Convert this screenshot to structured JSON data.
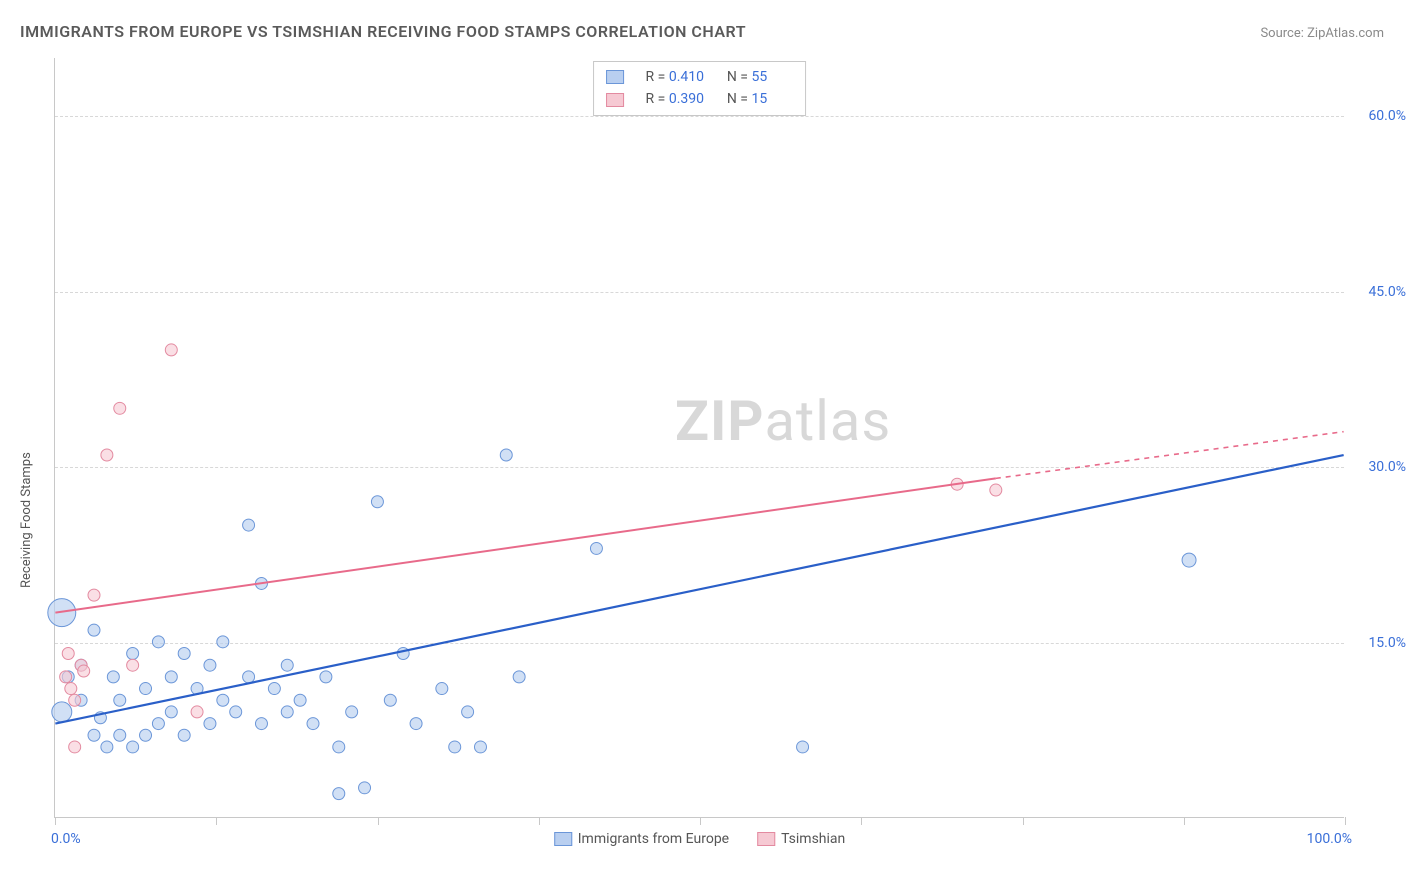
{
  "title": "IMMIGRANTS FROM EUROPE VS TSIMSHIAN RECEIVING FOOD STAMPS CORRELATION CHART",
  "source_label": "Source:",
  "source_value": "ZipAtlas.com",
  "ylabel": "Receiving Food Stamps",
  "watermark_a": "ZIP",
  "watermark_b": "atlas",
  "chart": {
    "type": "scatter",
    "background_color": "#ffffff",
    "grid_color": "#d8d8d8",
    "axis_color": "#c8c8c8",
    "xlim": [
      0,
      100
    ],
    "ylim": [
      0,
      65
    ],
    "x_tick_positions": [
      0,
      12.5,
      25,
      37.5,
      50,
      62.5,
      75,
      87.5,
      100
    ],
    "x_tick_labels": {
      "0": "0.0%",
      "100": "100.0%"
    },
    "y_gridlines": [
      15,
      30,
      45,
      60
    ],
    "y_tick_labels": {
      "15": "15.0%",
      "30": "30.0%",
      "45": "45.0%",
      "60": "60.0%"
    },
    "tick_label_color": "#3a6fd8",
    "label_color": "#555555",
    "label_fontsize": 13,
    "tick_fontsize": 14,
    "series": [
      {
        "name": "Immigrants from Europe",
        "fill": "#b9cff0",
        "stroke": "#6b96d8",
        "fill_opacity": 0.65,
        "line_color": "#2a5fc8",
        "line_width": 2.2,
        "regression": {
          "x1": 0,
          "y1": 8,
          "x2": 100,
          "y2": 31
        },
        "R": "0.410",
        "N": "55",
        "points": [
          {
            "x": 0.5,
            "y": 17.5,
            "r": 14
          },
          {
            "x": 0.5,
            "y": 9,
            "r": 10
          },
          {
            "x": 1,
            "y": 12,
            "r": 6
          },
          {
            "x": 2,
            "y": 10,
            "r": 6
          },
          {
            "x": 2,
            "y": 13,
            "r": 6
          },
          {
            "x": 3,
            "y": 7,
            "r": 6
          },
          {
            "x": 3,
            "y": 16,
            "r": 6
          },
          {
            "x": 3.5,
            "y": 8.5,
            "r": 6
          },
          {
            "x": 4,
            "y": 6,
            "r": 6
          },
          {
            "x": 4.5,
            "y": 12,
            "r": 6
          },
          {
            "x": 5,
            "y": 7,
            "r": 6
          },
          {
            "x": 5,
            "y": 10,
            "r": 6
          },
          {
            "x": 6,
            "y": 6,
            "r": 6
          },
          {
            "x": 6,
            "y": 14,
            "r": 6
          },
          {
            "x": 7,
            "y": 7,
            "r": 6
          },
          {
            "x": 7,
            "y": 11,
            "r": 6
          },
          {
            "x": 8,
            "y": 8,
            "r": 6
          },
          {
            "x": 8,
            "y": 15,
            "r": 6
          },
          {
            "x": 9,
            "y": 12,
            "r": 6
          },
          {
            "x": 9,
            "y": 9,
            "r": 6
          },
          {
            "x": 10,
            "y": 7,
            "r": 6
          },
          {
            "x": 10,
            "y": 14,
            "r": 6
          },
          {
            "x": 11,
            "y": 11,
            "r": 6
          },
          {
            "x": 12,
            "y": 8,
            "r": 6
          },
          {
            "x": 12,
            "y": 13,
            "r": 6
          },
          {
            "x": 13,
            "y": 10,
            "r": 6
          },
          {
            "x": 13,
            "y": 15,
            "r": 6
          },
          {
            "x": 14,
            "y": 9,
            "r": 6
          },
          {
            "x": 15,
            "y": 12,
            "r": 6
          },
          {
            "x": 15,
            "y": 25,
            "r": 6
          },
          {
            "x": 16,
            "y": 8,
            "r": 6
          },
          {
            "x": 16,
            "y": 20,
            "r": 6
          },
          {
            "x": 17,
            "y": 11,
            "r": 6
          },
          {
            "x": 18,
            "y": 9,
            "r": 6
          },
          {
            "x": 18,
            "y": 13,
            "r": 6
          },
          {
            "x": 19,
            "y": 10,
            "r": 6
          },
          {
            "x": 20,
            "y": 8,
            "r": 6
          },
          {
            "x": 21,
            "y": 12,
            "r": 6
          },
          {
            "x": 22,
            "y": 6,
            "r": 6
          },
          {
            "x": 22,
            "y": 2,
            "r": 6
          },
          {
            "x": 23,
            "y": 9,
            "r": 6
          },
          {
            "x": 24,
            "y": 2.5,
            "r": 6
          },
          {
            "x": 25,
            "y": 27,
            "r": 6
          },
          {
            "x": 26,
            "y": 10,
            "r": 6
          },
          {
            "x": 27,
            "y": 14,
            "r": 6
          },
          {
            "x": 28,
            "y": 8,
            "r": 6
          },
          {
            "x": 30,
            "y": 11,
            "r": 6
          },
          {
            "x": 31,
            "y": 6,
            "r": 6
          },
          {
            "x": 32,
            "y": 9,
            "r": 6
          },
          {
            "x": 33,
            "y": 6,
            "r": 6
          },
          {
            "x": 35,
            "y": 31,
            "r": 6
          },
          {
            "x": 36,
            "y": 12,
            "r": 6
          },
          {
            "x": 42,
            "y": 23,
            "r": 6
          },
          {
            "x": 58,
            "y": 6,
            "r": 6
          },
          {
            "x": 88,
            "y": 22,
            "r": 7
          }
        ]
      },
      {
        "name": "Tsimshian",
        "fill": "#f6c9d3",
        "stroke": "#e38aa0",
        "fill_opacity": 0.6,
        "line_color": "#e86a8a",
        "line_width": 2,
        "regression": {
          "x1": 0,
          "y1": 17.5,
          "x2": 73,
          "y2": 29
        },
        "regression_ext": {
          "x1": 73,
          "y1": 29,
          "x2": 100,
          "y2": 33
        },
        "R": "0.390",
        "N": "15",
        "points": [
          {
            "x": 0.8,
            "y": 12,
            "r": 6
          },
          {
            "x": 1,
            "y": 14,
            "r": 6
          },
          {
            "x": 1.2,
            "y": 11,
            "r": 6
          },
          {
            "x": 1.5,
            "y": 10,
            "r": 6
          },
          {
            "x": 1.5,
            "y": 6,
            "r": 6
          },
          {
            "x": 2,
            "y": 13,
            "r": 6
          },
          {
            "x": 2.2,
            "y": 12.5,
            "r": 6
          },
          {
            "x": 3,
            "y": 19,
            "r": 6
          },
          {
            "x": 4,
            "y": 31,
            "r": 6
          },
          {
            "x": 5,
            "y": 35,
            "r": 6
          },
          {
            "x": 6,
            "y": 13,
            "r": 6
          },
          {
            "x": 9,
            "y": 40,
            "r": 6
          },
          {
            "x": 11,
            "y": 9,
            "r": 6
          },
          {
            "x": 70,
            "y": 28.5,
            "r": 6
          },
          {
            "x": 73,
            "y": 28,
            "r": 6
          }
        ]
      }
    ],
    "legend_top": {
      "r_label": "R",
      "n_label": "N",
      "eq": "="
    },
    "legend_bottom": [
      {
        "label": "Immigrants from Europe",
        "fill": "#b9cff0",
        "stroke": "#6b96d8"
      },
      {
        "label": "Tsimshian",
        "fill": "#f6c9d3",
        "stroke": "#e38aa0"
      }
    ]
  }
}
